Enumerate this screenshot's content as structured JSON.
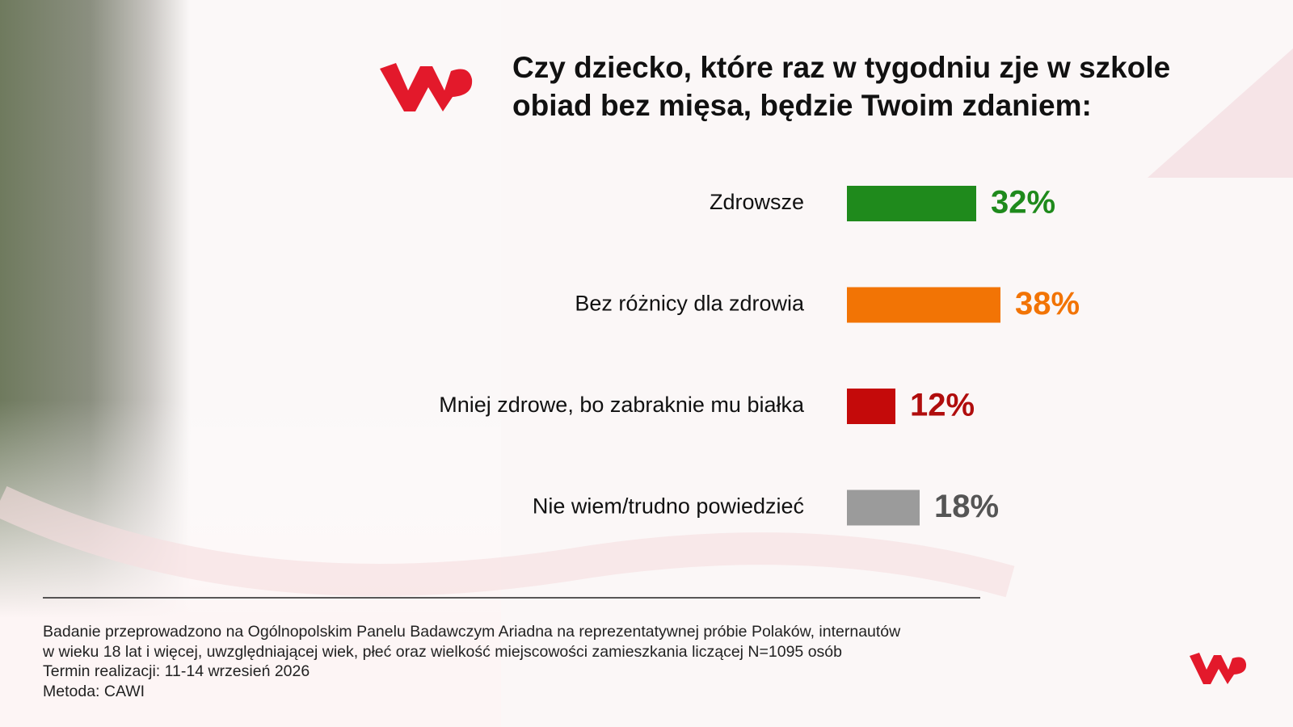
{
  "chart_data": {
    "type": "bar",
    "orientation": "horizontal",
    "title": "Czy dziecko, które raz w tygodniu zje w szkole obiad bez mięsa, będzie Twoim zdaniem:",
    "categories": [
      "Zdrowsze",
      "Bez różnicy dla zdrowia",
      "Mniej zdrowe, bo zabraknie mu białka",
      "Nie wiem/trudno powiedzieć"
    ],
    "values": [
      32,
      38,
      12,
      18
    ],
    "value_labels": [
      "32%",
      "38%",
      "12%",
      "18%"
    ],
    "colors": [
      "#1f8a1c",
      "#f27405",
      "#c40a0a",
      "#9b9b9b"
    ],
    "value_label_colors": [
      "#1f8a1c",
      "#f27405",
      "#b00d0d",
      "#555555"
    ],
    "notes": [
      "Badanie przeprowadzono na Ogólnopolskim Panelu Badawczym Ariadna na reprezentatywnej próbie Polaków, internautów",
      "w wieku 18 lat i więcej, uwzględniającej wiek, płeć oraz wielkość miejscowości zamieszkania liczącej N=1095 osób",
      "Termin realizacji: 11-14 wrzesień 2026",
      "Metoda: CAWI"
    ]
  }
}
